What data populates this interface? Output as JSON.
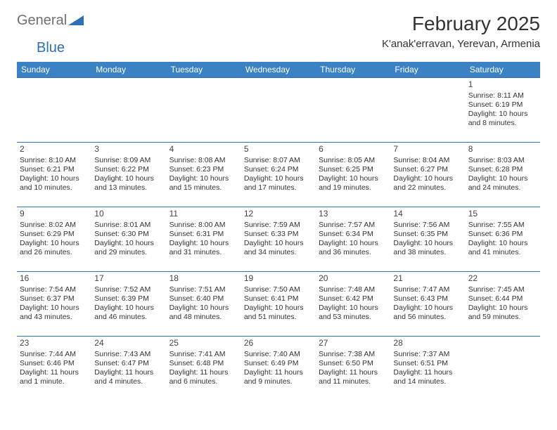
{
  "brand": {
    "general": "General",
    "blue": "Blue",
    "mark_color": "#2f6fb3",
    "text_gray": "#6f6f6f"
  },
  "title": {
    "month": "February 2025",
    "location": "K'anak'erravan, Yerevan, Armenia"
  },
  "colors": {
    "header_bg": "#3a82c4",
    "header_text": "#ffffff",
    "rule": "#2f6fb3",
    "body_text": "#333333",
    "page_bg": "#ffffff"
  },
  "weekdays": [
    "Sunday",
    "Monday",
    "Tuesday",
    "Wednesday",
    "Thursday",
    "Friday",
    "Saturday"
  ],
  "weeks": [
    [
      null,
      null,
      null,
      null,
      null,
      null,
      {
        "d": "1",
        "sr": "Sunrise: 8:11 AM",
        "ss": "Sunset: 6:19 PM",
        "dl": "Daylight: 10 hours and 8 minutes."
      }
    ],
    [
      {
        "d": "2",
        "sr": "Sunrise: 8:10 AM",
        "ss": "Sunset: 6:21 PM",
        "dl": "Daylight: 10 hours and 10 minutes."
      },
      {
        "d": "3",
        "sr": "Sunrise: 8:09 AM",
        "ss": "Sunset: 6:22 PM",
        "dl": "Daylight: 10 hours and 13 minutes."
      },
      {
        "d": "4",
        "sr": "Sunrise: 8:08 AM",
        "ss": "Sunset: 6:23 PM",
        "dl": "Daylight: 10 hours and 15 minutes."
      },
      {
        "d": "5",
        "sr": "Sunrise: 8:07 AM",
        "ss": "Sunset: 6:24 PM",
        "dl": "Daylight: 10 hours and 17 minutes."
      },
      {
        "d": "6",
        "sr": "Sunrise: 8:05 AM",
        "ss": "Sunset: 6:25 PM",
        "dl": "Daylight: 10 hours and 19 minutes."
      },
      {
        "d": "7",
        "sr": "Sunrise: 8:04 AM",
        "ss": "Sunset: 6:27 PM",
        "dl": "Daylight: 10 hours and 22 minutes."
      },
      {
        "d": "8",
        "sr": "Sunrise: 8:03 AM",
        "ss": "Sunset: 6:28 PM",
        "dl": "Daylight: 10 hours and 24 minutes."
      }
    ],
    [
      {
        "d": "9",
        "sr": "Sunrise: 8:02 AM",
        "ss": "Sunset: 6:29 PM",
        "dl": "Daylight: 10 hours and 26 minutes."
      },
      {
        "d": "10",
        "sr": "Sunrise: 8:01 AM",
        "ss": "Sunset: 6:30 PM",
        "dl": "Daylight: 10 hours and 29 minutes."
      },
      {
        "d": "11",
        "sr": "Sunrise: 8:00 AM",
        "ss": "Sunset: 6:31 PM",
        "dl": "Daylight: 10 hours and 31 minutes."
      },
      {
        "d": "12",
        "sr": "Sunrise: 7:59 AM",
        "ss": "Sunset: 6:33 PM",
        "dl": "Daylight: 10 hours and 34 minutes."
      },
      {
        "d": "13",
        "sr": "Sunrise: 7:57 AM",
        "ss": "Sunset: 6:34 PM",
        "dl": "Daylight: 10 hours and 36 minutes."
      },
      {
        "d": "14",
        "sr": "Sunrise: 7:56 AM",
        "ss": "Sunset: 6:35 PM",
        "dl": "Daylight: 10 hours and 38 minutes."
      },
      {
        "d": "15",
        "sr": "Sunrise: 7:55 AM",
        "ss": "Sunset: 6:36 PM",
        "dl": "Daylight: 10 hours and 41 minutes."
      }
    ],
    [
      {
        "d": "16",
        "sr": "Sunrise: 7:54 AM",
        "ss": "Sunset: 6:37 PM",
        "dl": "Daylight: 10 hours and 43 minutes."
      },
      {
        "d": "17",
        "sr": "Sunrise: 7:52 AM",
        "ss": "Sunset: 6:39 PM",
        "dl": "Daylight: 10 hours and 46 minutes."
      },
      {
        "d": "18",
        "sr": "Sunrise: 7:51 AM",
        "ss": "Sunset: 6:40 PM",
        "dl": "Daylight: 10 hours and 48 minutes."
      },
      {
        "d": "19",
        "sr": "Sunrise: 7:50 AM",
        "ss": "Sunset: 6:41 PM",
        "dl": "Daylight: 10 hours and 51 minutes."
      },
      {
        "d": "20",
        "sr": "Sunrise: 7:48 AM",
        "ss": "Sunset: 6:42 PM",
        "dl": "Daylight: 10 hours and 53 minutes."
      },
      {
        "d": "21",
        "sr": "Sunrise: 7:47 AM",
        "ss": "Sunset: 6:43 PM",
        "dl": "Daylight: 10 hours and 56 minutes."
      },
      {
        "d": "22",
        "sr": "Sunrise: 7:45 AM",
        "ss": "Sunset: 6:44 PM",
        "dl": "Daylight: 10 hours and 59 minutes."
      }
    ],
    [
      {
        "d": "23",
        "sr": "Sunrise: 7:44 AM",
        "ss": "Sunset: 6:46 PM",
        "dl": "Daylight: 11 hours and 1 minute."
      },
      {
        "d": "24",
        "sr": "Sunrise: 7:43 AM",
        "ss": "Sunset: 6:47 PM",
        "dl": "Daylight: 11 hours and 4 minutes."
      },
      {
        "d": "25",
        "sr": "Sunrise: 7:41 AM",
        "ss": "Sunset: 6:48 PM",
        "dl": "Daylight: 11 hours and 6 minutes."
      },
      {
        "d": "26",
        "sr": "Sunrise: 7:40 AM",
        "ss": "Sunset: 6:49 PM",
        "dl": "Daylight: 11 hours and 9 minutes."
      },
      {
        "d": "27",
        "sr": "Sunrise: 7:38 AM",
        "ss": "Sunset: 6:50 PM",
        "dl": "Daylight: 11 hours and 11 minutes."
      },
      {
        "d": "28",
        "sr": "Sunrise: 7:37 AM",
        "ss": "Sunset: 6:51 PM",
        "dl": "Daylight: 11 hours and 14 minutes."
      },
      null
    ]
  ]
}
